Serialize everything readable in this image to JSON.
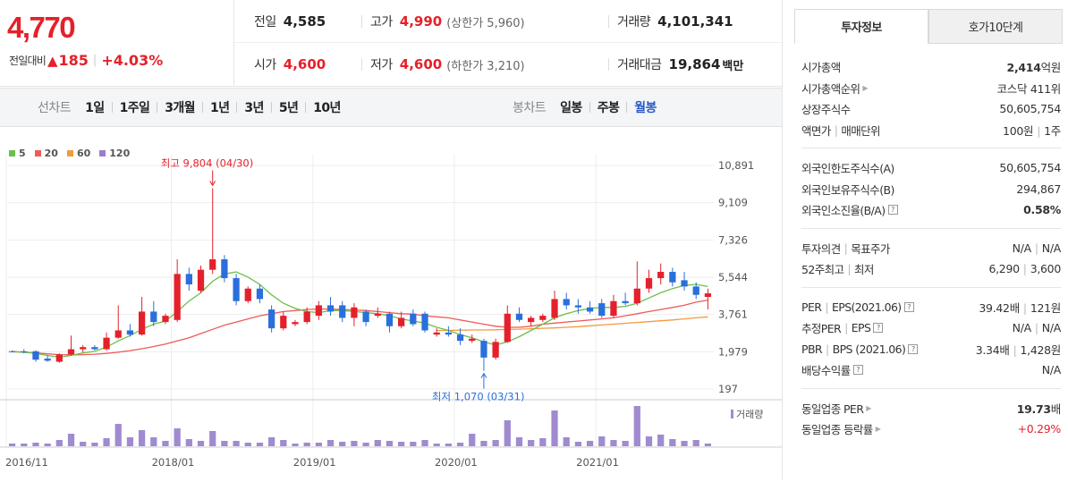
{
  "quote": {
    "price": "4,770",
    "change_label": "전일대비",
    "change_arrow": "▲",
    "change_value": "185",
    "change_pct": "+4.03%",
    "rows": [
      [
        {
          "key": "전일",
          "value": "4,585",
          "color": "normal",
          "sub": "",
          "unit": ""
        },
        {
          "key": "고가",
          "value": "4,990",
          "color": "red",
          "sub": "(상한가 5,960)",
          "unit": ""
        },
        {
          "key": "거래량",
          "value": "4,101,341",
          "color": "normal",
          "sub": "",
          "unit": ""
        }
      ],
      [
        {
          "key": "시가",
          "value": "4,600",
          "color": "red",
          "sub": "",
          "unit": ""
        },
        {
          "key": "저가",
          "value": "4,600",
          "color": "red",
          "sub": "(하한가 3,210)",
          "unit": ""
        },
        {
          "key": "거래대금",
          "value": "19,864",
          "color": "normal",
          "sub": "",
          "unit": "백만"
        }
      ]
    ]
  },
  "period_bar": {
    "line_title": "선차트",
    "line_items": [
      "1일",
      "1주일",
      "3개월",
      "1년",
      "3년",
      "5년",
      "10년"
    ],
    "candle_title": "봉차트",
    "candle_items": [
      "일봉",
      "주봉",
      "월봉"
    ],
    "candle_active": 2
  },
  "chart_data": {
    "type": "candlestick",
    "legend": [
      {
        "name": "5",
        "color": "#6cc04a"
      },
      {
        "name": "20",
        "color": "#ef5a5a"
      },
      {
        "name": "60",
        "color": "#f39a3c"
      },
      {
        "name": "120",
        "color": "#9b7ad1"
      }
    ],
    "y_ticks": [
      "10,891",
      "9,109",
      "7,326",
      "5,544",
      "3,761",
      "1,979",
      "197"
    ],
    "y_tick_values": [
      10891,
      9109,
      7326,
      5544,
      3761,
      1979,
      197
    ],
    "ylim": [
      197,
      10891
    ],
    "x_ticks": [
      "2016/11",
      "2018/01",
      "2019/01",
      "2020/01",
      "2021/01"
    ],
    "x_tick_index": [
      0,
      14,
      26,
      38,
      50
    ],
    "annotations": {
      "high": "최고 9,804 (04/30)",
      "high_index": 17,
      "low": "최저 1,070 (03/31)",
      "low_index": 40
    },
    "volume_label": "거래량",
    "candles": [
      {
        "o": 2000,
        "h": 2050,
        "l": 1950,
        "c": 1980,
        "v": 6
      },
      {
        "o": 2000,
        "h": 2100,
        "l": 1900,
        "c": 1950,
        "v": 6
      },
      {
        "o": 2000,
        "h": 2050,
        "l": 1500,
        "c": 1600,
        "v": 8
      },
      {
        "o": 1650,
        "h": 1800,
        "l": 1500,
        "c": 1550,
        "v": 6
      },
      {
        "o": 1500,
        "h": 1900,
        "l": 1450,
        "c": 1850,
        "v": 14
      },
      {
        "o": 1850,
        "h": 2750,
        "l": 1800,
        "c": 2100,
        "v": 28
      },
      {
        "o": 2100,
        "h": 2300,
        "l": 1950,
        "c": 2200,
        "v": 10
      },
      {
        "o": 2200,
        "h": 2300,
        "l": 2050,
        "c": 2100,
        "v": 8
      },
      {
        "o": 2100,
        "h": 2900,
        "l": 2050,
        "c": 2650,
        "v": 18
      },
      {
        "o": 2650,
        "h": 4200,
        "l": 2600,
        "c": 3000,
        "v": 50
      },
      {
        "o": 3000,
        "h": 3300,
        "l": 2700,
        "c": 2800,
        "v": 20
      },
      {
        "o": 2800,
        "h": 4600,
        "l": 2750,
        "c": 3900,
        "v": 36
      },
      {
        "o": 3900,
        "h": 4400,
        "l": 3200,
        "c": 3400,
        "v": 20
      },
      {
        "o": 3400,
        "h": 3800,
        "l": 3300,
        "c": 3700,
        "v": 12
      },
      {
        "o": 3500,
        "h": 6400,
        "l": 3400,
        "c": 5700,
        "v": 40
      },
      {
        "o": 5700,
        "h": 6000,
        "l": 4900,
        "c": 5200,
        "v": 16
      },
      {
        "o": 4900,
        "h": 6100,
        "l": 4800,
        "c": 5900,
        "v": 12
      },
      {
        "o": 5900,
        "h": 9804,
        "l": 5700,
        "c": 6400,
        "v": 34
      },
      {
        "o": 6400,
        "h": 6600,
        "l": 5300,
        "c": 5500,
        "v": 12
      },
      {
        "o": 5500,
        "h": 5700,
        "l": 4200,
        "c": 4400,
        "v": 12
      },
      {
        "o": 4400,
        "h": 5100,
        "l": 4300,
        "c": 5000,
        "v": 8
      },
      {
        "o": 5000,
        "h": 5200,
        "l": 4300,
        "c": 4500,
        "v": 8
      },
      {
        "o": 4000,
        "h": 4200,
        "l": 2900,
        "c": 3100,
        "v": 20
      },
      {
        "o": 3100,
        "h": 3900,
        "l": 3000,
        "c": 3700,
        "v": 14
      },
      {
        "o": 3300,
        "h": 3500,
        "l": 3200,
        "c": 3400,
        "v": 6
      },
      {
        "o": 3400,
        "h": 4100,
        "l": 3300,
        "c": 3900,
        "v": 8
      },
      {
        "o": 3700,
        "h": 4400,
        "l": 3500,
        "c": 4200,
        "v": 8
      },
      {
        "o": 4200,
        "h": 4600,
        "l": 3700,
        "c": 3900,
        "v": 14
      },
      {
        "o": 4200,
        "h": 4400,
        "l": 3400,
        "c": 3600,
        "v": 10
      },
      {
        "o": 3600,
        "h": 4300,
        "l": 3200,
        "c": 4100,
        "v": 12
      },
      {
        "o": 3900,
        "h": 4000,
        "l": 3200,
        "c": 3400,
        "v": 8
      },
      {
        "o": 3700,
        "h": 4100,
        "l": 3600,
        "c": 3800,
        "v": 14
      },
      {
        "o": 3800,
        "h": 3900,
        "l": 2900,
        "c": 3200,
        "v": 12
      },
      {
        "o": 3200,
        "h": 3900,
        "l": 3100,
        "c": 3600,
        "v": 10
      },
      {
        "o": 3800,
        "h": 4000,
        "l": 3200,
        "c": 3300,
        "v": 10
      },
      {
        "o": 3800,
        "h": 3900,
        "l": 2900,
        "c": 3000,
        "v": 14
      },
      {
        "o": 2800,
        "h": 3100,
        "l": 2700,
        "c": 2900,
        "v": 6
      },
      {
        "o": 2900,
        "h": 3200,
        "l": 2700,
        "c": 2800,
        "v": 6
      },
      {
        "o": 2800,
        "h": 3100,
        "l": 2300,
        "c": 2500,
        "v": 8
      },
      {
        "o": 2500,
        "h": 2800,
        "l": 2400,
        "c": 2600,
        "v": 28
      },
      {
        "o": 2500,
        "h": 2600,
        "l": 1070,
        "c": 1700,
        "v": 12
      },
      {
        "o": 1700,
        "h": 2600,
        "l": 1600,
        "c": 2450,
        "v": 14
      },
      {
        "o": 2450,
        "h": 4200,
        "l": 2400,
        "c": 3800,
        "v": 58
      },
      {
        "o": 3800,
        "h": 4100,
        "l": 3400,
        "c": 3500,
        "v": 20
      },
      {
        "o": 3400,
        "h": 3700,
        "l": 3200,
        "c": 3600,
        "v": 14
      },
      {
        "o": 3500,
        "h": 3800,
        "l": 3400,
        "c": 3700,
        "v": 18
      },
      {
        "o": 3600,
        "h": 4900,
        "l": 3500,
        "c": 4500,
        "v": 80
      },
      {
        "o": 4500,
        "h": 4800,
        "l": 4000,
        "c": 4200,
        "v": 20
      },
      {
        "o": 4200,
        "h": 4500,
        "l": 3800,
        "c": 4100,
        "v": 10
      },
      {
        "o": 4100,
        "h": 4400,
        "l": 3800,
        "c": 3900,
        "v": 12
      },
      {
        "o": 4300,
        "h": 4500,
        "l": 3600,
        "c": 3700,
        "v": 22
      },
      {
        "o": 3700,
        "h": 4700,
        "l": 3600,
        "c": 4400,
        "v": 14
      },
      {
        "o": 4400,
        "h": 4800,
        "l": 4200,
        "c": 4300,
        "v": 12
      },
      {
        "o": 4300,
        "h": 6300,
        "l": 4200,
        "c": 5000,
        "v": 90
      },
      {
        "o": 5000,
        "h": 5900,
        "l": 4800,
        "c": 5500,
        "v": 22
      },
      {
        "o": 5500,
        "h": 6200,
        "l": 5200,
        "c": 5800,
        "v": 26
      },
      {
        "o": 5800,
        "h": 6000,
        "l": 5100,
        "c": 5300,
        "v": 16
      },
      {
        "o": 5400,
        "h": 5800,
        "l": 4900,
        "c": 5100,
        "v": 12
      },
      {
        "o": 5100,
        "h": 5300,
        "l": 4500,
        "c": 4700,
        "v": 14
      },
      {
        "o": 4600,
        "h": 5000,
        "l": 4000,
        "c": 4770,
        "v": 6
      }
    ],
    "ma5": [
      1990,
      1960,
      1900,
      1800,
      1720,
      1800,
      1920,
      2000,
      2200,
      2500,
      2750,
      3050,
      3300,
      3450,
      3900,
      4400,
      4800,
      5350,
      5700,
      5800,
      5550,
      5200,
      4700,
      4300,
      4050,
      3900,
      3850,
      3950,
      3950,
      3900,
      3850,
      3800,
      3700,
      3550,
      3450,
      3350,
      3150,
      3000,
      2800,
      2650,
      2450,
      2300,
      2450,
      2700,
      3000,
      3300,
      3600,
      3800,
      3950,
      4050,
      4100,
      4100,
      4150,
      4300,
      4550,
      4800,
      5000,
      5150,
      5200,
      5100
    ],
    "ma20": [
      1980,
      1960,
      1930,
      1880,
      1840,
      1830,
      1840,
      1860,
      1900,
      1960,
      2030,
      2120,
      2230,
      2350,
      2500,
      2650,
      2850,
      3050,
      3250,
      3400,
      3550,
      3700,
      3800,
      3900,
      3950,
      4000,
      4020,
      4020,
      4000,
      3980,
      3950,
      3900,
      3850,
      3800,
      3780,
      3700,
      3650,
      3600,
      3500,
      3400,
      3300,
      3200,
      3150,
      3150,
      3200,
      3300,
      3350,
      3400,
      3450,
      3500,
      3550,
      3600,
      3700,
      3800,
      3900,
      4000,
      4100,
      4200,
      4350,
      4450
    ],
    "ma60": [
      null,
      null,
      null,
      null,
      null,
      null,
      null,
      null,
      null,
      null,
      null,
      null,
      null,
      null,
      null,
      null,
      null,
      null,
      null,
      null,
      null,
      null,
      null,
      null,
      null,
      null,
      null,
      null,
      null,
      null,
      null,
      null,
      null,
      null,
      null,
      null,
      3000,
      3000,
      3010,
      3020,
      3020,
      3030,
      3050,
      3060,
      3080,
      3100,
      3120,
      3150,
      3180,
      3220,
      3260,
      3300,
      3340,
      3380,
      3420,
      3460,
      3500,
      3550,
      3600,
      3650
    ]
  },
  "panel": {
    "tabs": [
      "투자정보",
      "호가10단계"
    ],
    "sections": [
      [
        {
          "k": "시가총액",
          "k2": "",
          "v1": "2,414",
          "v1_bold": true,
          "v2": "억원",
          "arrow": false,
          "help": false,
          "red": false
        },
        {
          "k": "시가총액순위",
          "k2": "",
          "v1": "코스닥 411위",
          "v1_bold": false,
          "v2": "",
          "arrow": true,
          "help": false,
          "red": false
        },
        {
          "k": "상장주식수",
          "k2": "",
          "v1": "50,605,754",
          "v1_bold": false,
          "v2": "",
          "arrow": false,
          "help": false,
          "red": false
        },
        {
          "k": "액면가",
          "k2": "매매단위",
          "v1": "100원",
          "v1_bold": false,
          "v2": "1주",
          "arrow": false,
          "help": false,
          "red": false
        }
      ],
      [
        {
          "k": "외국인한도주식수(A)",
          "k2": "",
          "v1": "50,605,754",
          "v1_bold": false,
          "v2": "",
          "arrow": false,
          "help": false,
          "red": false
        },
        {
          "k": "외국인보유주식수(B)",
          "k2": "",
          "v1": "294,867",
          "v1_bold": false,
          "v2": "",
          "arrow": false,
          "help": false,
          "red": false
        },
        {
          "k": "외국인소진율(B/A)",
          "k2": "",
          "v1": "0.58%",
          "v1_bold": true,
          "v2": "",
          "arrow": false,
          "help": true,
          "red": false
        }
      ],
      [
        {
          "k": "투자의견",
          "k2": "목표주가",
          "v1": "N/A",
          "v1_bold": false,
          "v2": "N/A",
          "arrow": false,
          "help": false,
          "red": false
        },
        {
          "k": "52주최고",
          "k2": "최저",
          "v1": "6,290",
          "v1_bold": false,
          "v2": "3,600",
          "arrow": false,
          "help": false,
          "red": false
        }
      ],
      [
        {
          "k": "PER",
          "k2": "EPS(2021.06)",
          "v1": "39.42배",
          "v1_bold": false,
          "v2": "121원",
          "arrow": false,
          "help": true,
          "red": false
        },
        {
          "k": "추정PER",
          "k2": "EPS",
          "v1": "N/A",
          "v1_bold": false,
          "v2": "N/A",
          "arrow": false,
          "help": true,
          "red": false
        },
        {
          "k": "PBR",
          "k2": "BPS (2021.06)",
          "v1": "3.34배",
          "v1_bold": false,
          "v2": "1,428원",
          "arrow": false,
          "help": true,
          "red": false
        },
        {
          "k": "배당수익률",
          "k2": "",
          "v1": "N/A",
          "v1_bold": false,
          "v2": "",
          "arrow": false,
          "help": true,
          "red": false
        }
      ],
      [
        {
          "k": "동일업종 PER",
          "k2": "",
          "v1": "19.73",
          "v1_bold": true,
          "v2": "배",
          "arrow": true,
          "help": false,
          "red": false
        },
        {
          "k": "동일업종 등락률",
          "k2": "",
          "v1": "+0.29%",
          "v1_bold": false,
          "v2": "",
          "arrow": true,
          "help": false,
          "red": true
        }
      ]
    ]
  },
  "colors": {
    "up": "#e4212b",
    "down": "#2a6fdb",
    "volume": "#a08bd0"
  }
}
